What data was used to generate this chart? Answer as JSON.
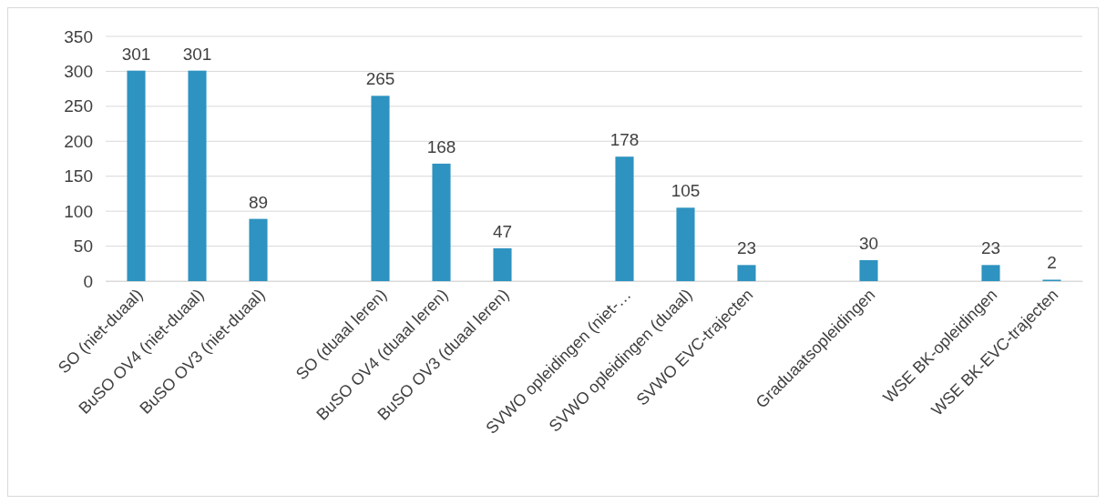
{
  "chart_data": {
    "type": "bar",
    "categories": [
      "SO (niet-duaal)",
      "BuSO OV4 (niet-duaal)",
      "BuSO OV3 (niet-duaal)",
      null,
      "SO (duaal leren)",
      "BuSO OV4 (duaal leren)",
      "BuSO OV3 (duaal leren)",
      null,
      "SVWO opleidingen (niet-…",
      "SVWO opleidingen (duaal)",
      "SVWO EVC-trajecten",
      null,
      "Graduaatsopleidingen",
      null,
      "WSE BK-opleidingen",
      "WSE BK-EVC-trajecten"
    ],
    "values": [
      301,
      301,
      89,
      null,
      265,
      168,
      47,
      null,
      178,
      105,
      23,
      null,
      30,
      null,
      23,
      2
    ],
    "color": "#2e93c0",
    "ylim": [
      0,
      350
    ],
    "yticks": [
      0,
      50,
      100,
      150,
      200,
      250,
      300,
      350
    ],
    "grid": "y",
    "data_labels": true
  }
}
